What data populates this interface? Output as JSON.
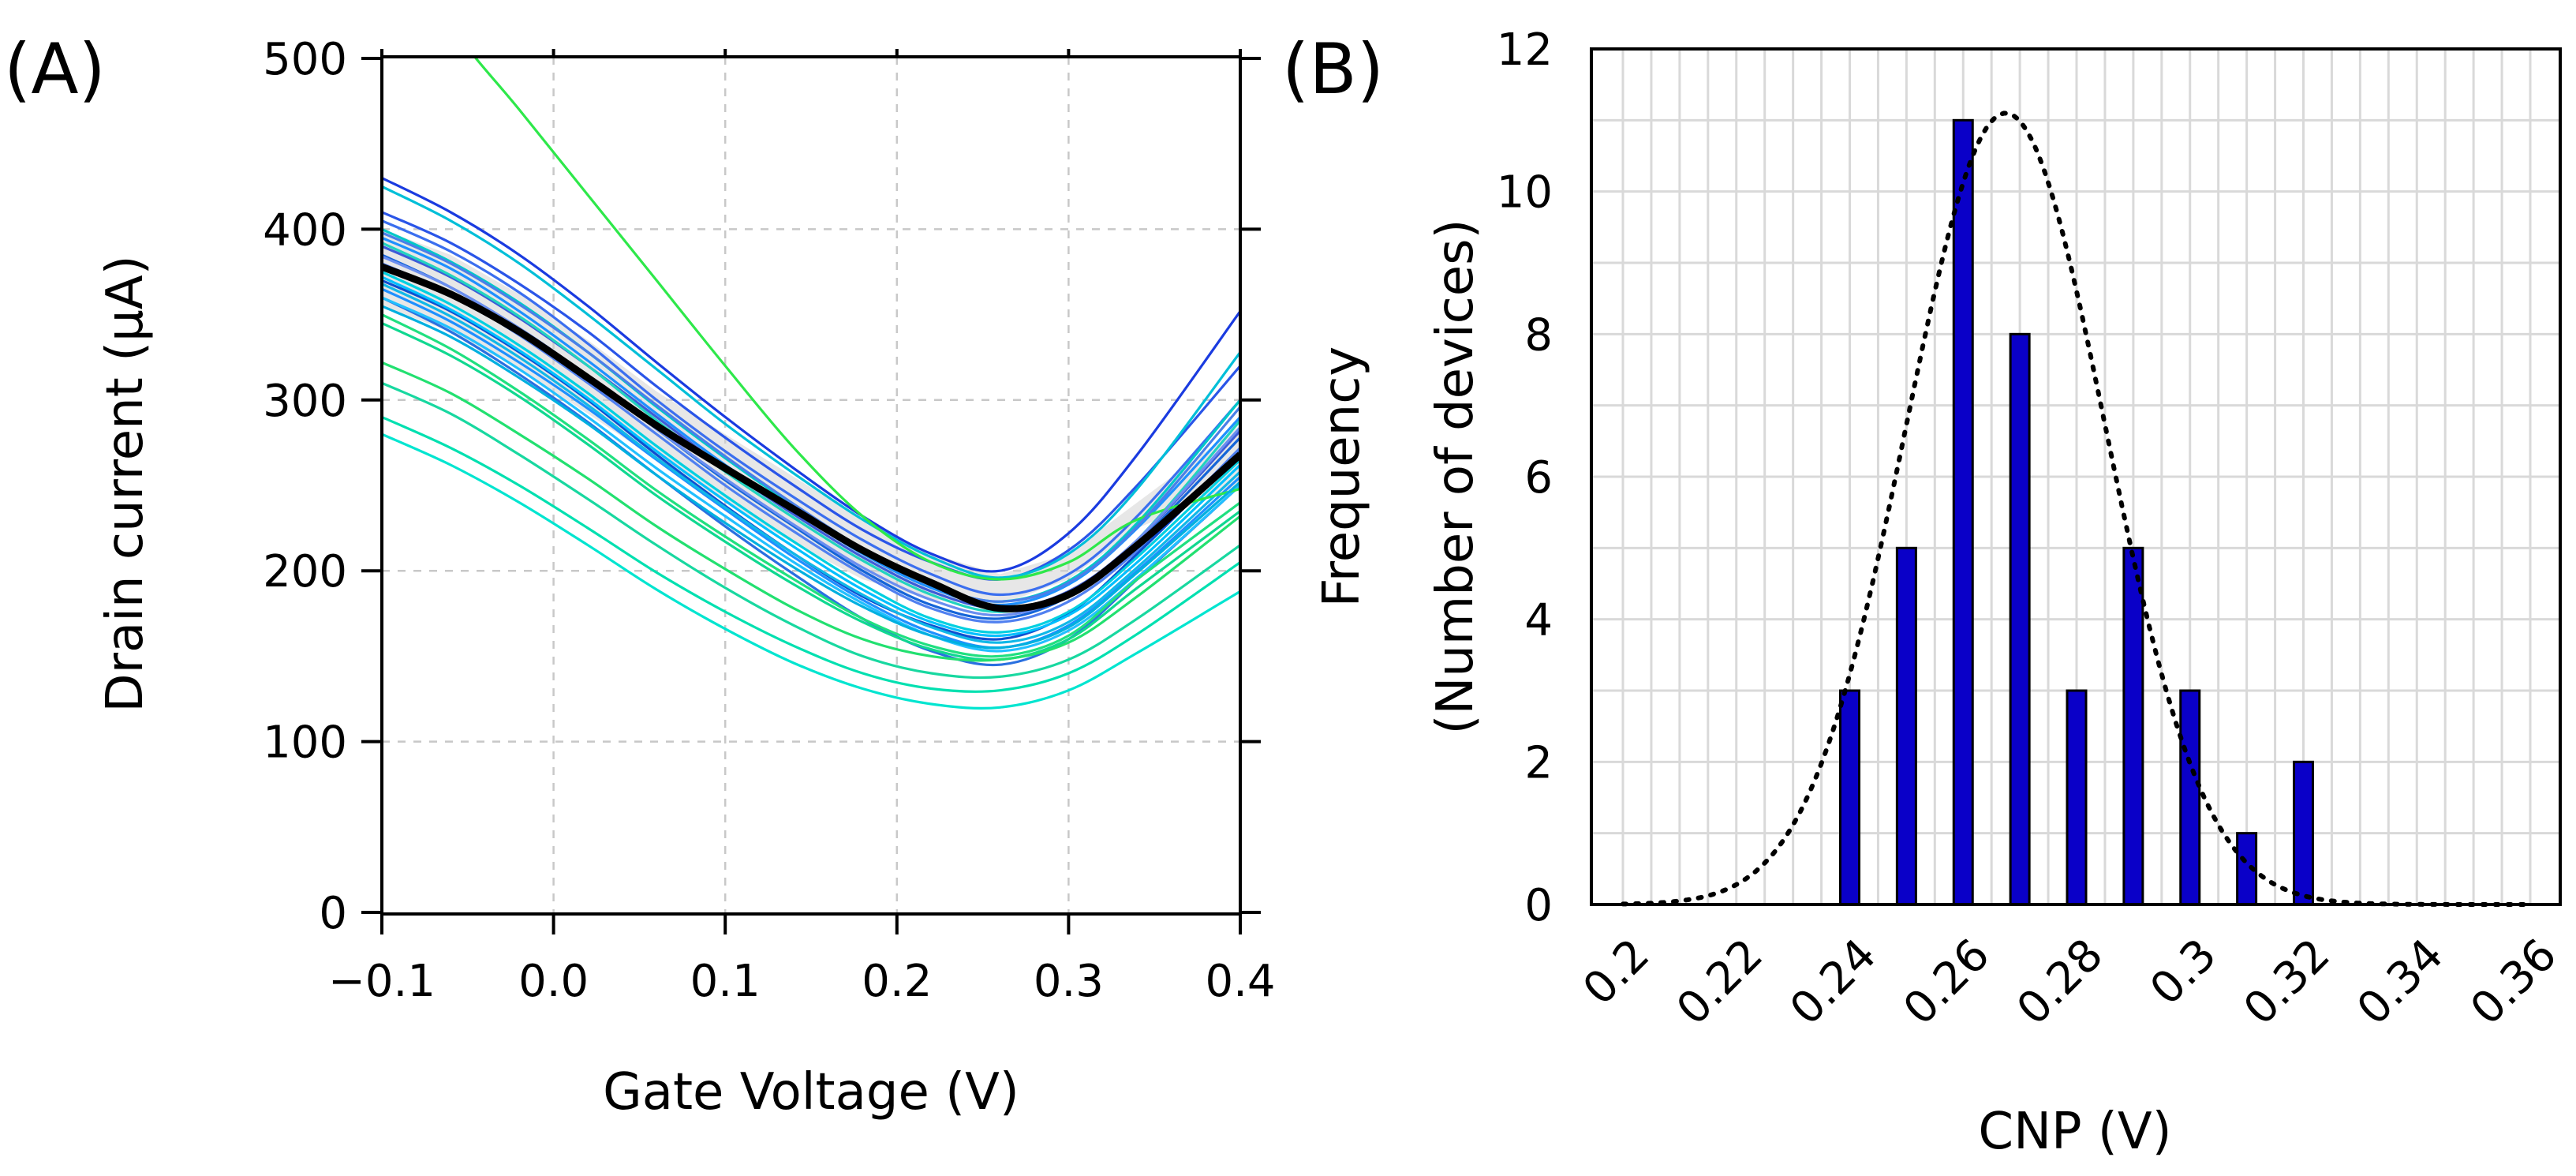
{
  "chart_data": [
    {
      "panel_label": "(A)",
      "type": "line",
      "xlabel": "Gate Voltage (V)",
      "ylabel": "Drain current (μA)",
      "xlim": [
        -0.1,
        0.4
      ],
      "ylim": [
        0,
        500
      ],
      "xticks": [
        -0.1,
        0.0,
        0.1,
        0.2,
        0.3,
        0.4
      ],
      "xtick_labels": [
        "−0.1",
        "0.0",
        "0.1",
        "0.2",
        "0.3",
        "0.4"
      ],
      "yticks": [
        0,
        100,
        200,
        300,
        400,
        500
      ],
      "ytick_labels": [
        "0",
        "100",
        "200",
        "300",
        "400",
        "500"
      ],
      "grid": true,
      "legend": "none",
      "band": {
        "description_only": true,
        "low": [
          355,
          340,
          318,
          292,
          265,
          240,
          216,
          195,
          183,
          180,
          195,
          225,
          250
        ],
        "high": [
          400,
          385,
          362,
          335,
          305,
          280,
          255,
          230,
          210,
          198,
          210,
          240,
          285
        ]
      },
      "x": [
        -0.1,
        -0.06,
        -0.02,
        0.02,
        0.06,
        0.1,
        0.14,
        0.18,
        0.22,
        0.26,
        0.3,
        0.34,
        0.4
      ],
      "mean_curve": [
        378,
        362,
        340,
        313,
        285,
        260,
        236,
        212,
        193,
        178,
        186,
        215,
        268
      ],
      "series": [
        {
          "color": "#1a3be0",
          "values": [
            430,
            410,
            385,
            355,
            322,
            290,
            260,
            232,
            210,
            200,
            222,
            268,
            352
          ]
        },
        {
          "color": "#2a55e8",
          "values": [
            410,
            392,
            368,
            340,
            308,
            278,
            250,
            224,
            205,
            195,
            212,
            250,
            320
          ]
        },
        {
          "color": "#3b6fef",
          "values": [
            405,
            387,
            363,
            333,
            300,
            270,
            243,
            218,
            198,
            186,
            198,
            232,
            300
          ]
        },
        {
          "color": "#1e90ff",
          "values": [
            395,
            377,
            352,
            323,
            292,
            262,
            235,
            210,
            190,
            180,
            192,
            225,
            290
          ]
        },
        {
          "color": "#3d5cd8",
          "values": [
            390,
            372,
            348,
            320,
            290,
            260,
            233,
            208,
            188,
            178,
            188,
            218,
            282
          ]
        },
        {
          "color": "#1565d8",
          "values": [
            385,
            366,
            342,
            314,
            283,
            253,
            226,
            200,
            180,
            172,
            185,
            216,
            278
          ]
        },
        {
          "color": "#5080f0",
          "values": [
            380,
            362,
            338,
            310,
            280,
            250,
            223,
            198,
            178,
            170,
            182,
            212,
            272
          ]
        },
        {
          "color": "#0f4fd0",
          "values": [
            370,
            352,
            328,
            300,
            268,
            238,
            210,
            185,
            168,
            160,
            175,
            210,
            270
          ]
        },
        {
          "color": "#1e90ff",
          "values": [
            365,
            346,
            322,
            295,
            265,
            236,
            208,
            183,
            164,
            155,
            168,
            200,
            255
          ]
        },
        {
          "color": "#2a70e0",
          "values": [
            360,
            340,
            315,
            287,
            256,
            226,
            198,
            172,
            153,
            145,
            160,
            195,
            250
          ]
        },
        {
          "color": "#00bfd8",
          "values": [
            425,
            405,
            380,
            350,
            318,
            286,
            257,
            230,
            208,
            196,
            210,
            248,
            328
          ]
        },
        {
          "color": "#00c8c8",
          "values": [
            400,
            381,
            357,
            328,
            296,
            266,
            238,
            212,
            192,
            182,
            194,
            228,
            300
          ]
        },
        {
          "color": "#22d3c0",
          "values": [
            392,
            373,
            349,
            320,
            288,
            258,
            231,
            206,
            186,
            176,
            187,
            218,
            288
          ]
        },
        {
          "color": "#00d0e0",
          "values": [
            375,
            356,
            332,
            304,
            273,
            244,
            217,
            192,
            172,
            164,
            176,
            208,
            265
          ]
        },
        {
          "color": "#00c0ff",
          "values": [
            372,
            353,
            329,
            301,
            270,
            241,
            214,
            189,
            170,
            162,
            174,
            205,
            262
          ]
        },
        {
          "color": "#10b8e8",
          "values": [
            368,
            349,
            325,
            297,
            266,
            237,
            210,
            186,
            167,
            158,
            170,
            202,
            258
          ]
        },
        {
          "color": "#22c0ff",
          "values": [
            360,
            342,
            318,
            290,
            260,
            232,
            205,
            181,
            162,
            153,
            165,
            196,
            250
          ]
        },
        {
          "color": "#20e080",
          "values": [
            350,
            330,
            305,
            277,
            247,
            220,
            195,
            172,
            156,
            150,
            162,
            195,
            240
          ]
        },
        {
          "color": "#10d890",
          "values": [
            345,
            326,
            302,
            274,
            244,
            217,
            192,
            170,
            154,
            148,
            160,
            190,
            235
          ]
        },
        {
          "color": "#22e070",
          "values": [
            322,
            304,
            280,
            254,
            226,
            201,
            178,
            160,
            150,
            148,
            158,
            185,
            232
          ]
        },
        {
          "color": "#18d8a0",
          "values": [
            310,
            292,
            268,
            242,
            215,
            190,
            168,
            150,
            140,
            138,
            148,
            172,
            215
          ]
        },
        {
          "color": "#00e0b0",
          "values": [
            290,
            272,
            250,
            225,
            199,
            176,
            156,
            140,
            131,
            130,
            140,
            163,
            205
          ]
        },
        {
          "color": "#00e5d0",
          "values": [
            280,
            262,
            240,
            215,
            189,
            166,
            146,
            131,
            122,
            120,
            130,
            152,
            188
          ]
        },
        {
          "color": "#2ee84a",
          "values": [
            590,
            520,
            470,
            420,
            370,
            320,
            272,
            232,
            205,
            195,
            205,
            230,
            248
          ]
        },
        {
          "color": "#4a7fe8",
          "values": [
            398,
            380,
            356,
            328,
            297,
            267,
            239,
            213,
            192,
            182,
            193,
            226,
            296
          ]
        },
        {
          "color": "#6a8ef0",
          "values": [
            384,
            366,
            342,
            314,
            283,
            254,
            227,
            202,
            183,
            174,
            186,
            218,
            284
          ]
        },
        {
          "color": "#00b0e0",
          "values": [
            355,
            337,
            313,
            286,
            256,
            228,
            202,
            179,
            162,
            155,
            167,
            199,
            252
          ]
        }
      ]
    },
    {
      "panel_label": "(B)",
      "type": "bar",
      "xlabel": "CNP (V)",
      "ylabel_line1": "Frequency",
      "ylabel_line2": "(Number of devices)",
      "xlim": [
        0.2,
        0.36
      ],
      "ylim": [
        0,
        12
      ],
      "x_tick_labels": [
        "0.2",
        "0.22",
        "0.24",
        "0.26",
        "0.28",
        "0.3",
        "0.32",
        "0.34",
        "0.36"
      ],
      "y_tick_labels": [
        "0",
        "2",
        "4",
        "6",
        "8",
        "10",
        "12"
      ],
      "grid": true,
      "legend": "none",
      "bar_color": "#0a00c8",
      "bars": [
        {
          "x": 0.24,
          "value": 3
        },
        {
          "x": 0.25,
          "value": 5
        },
        {
          "x": 0.26,
          "value": 11
        },
        {
          "x": 0.27,
          "value": 8
        },
        {
          "x": 0.28,
          "value": 3
        },
        {
          "x": 0.29,
          "value": 5
        },
        {
          "x": 0.3,
          "value": 3
        },
        {
          "x": 0.31,
          "value": 1
        },
        {
          "x": 0.32,
          "value": 2
        }
      ],
      "fit_curve": {
        "style": "dotted",
        "mean": 0.2675,
        "sigma": 0.0175,
        "peak": 11.1
      }
    }
  ]
}
